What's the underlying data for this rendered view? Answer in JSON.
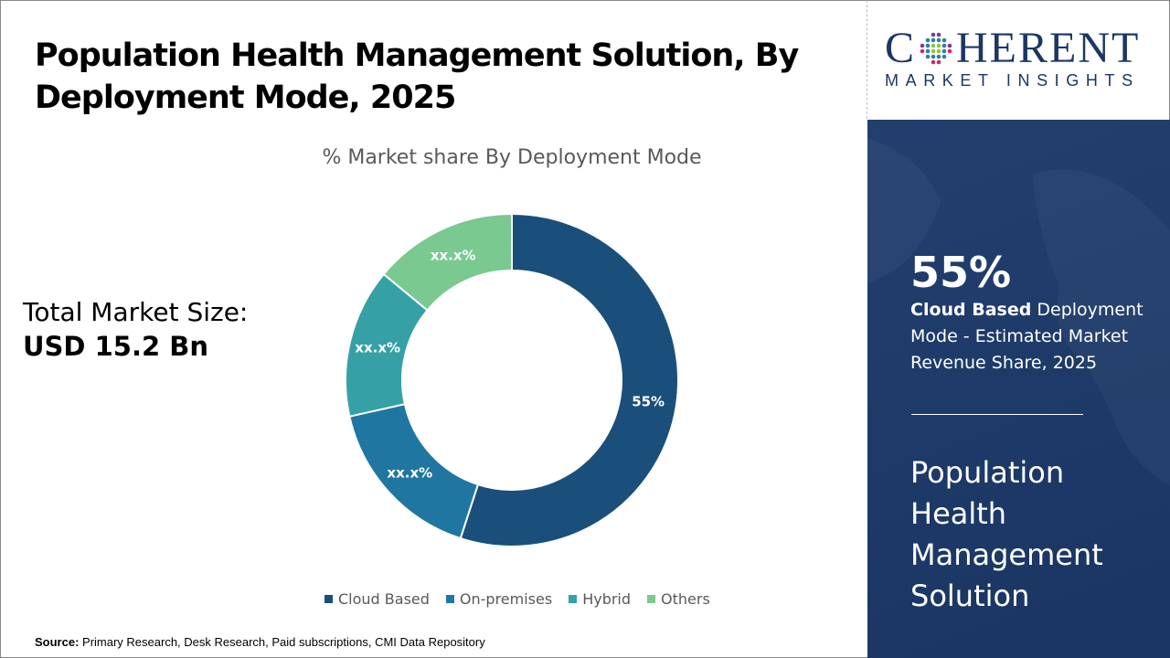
{
  "title": "Population Health Management Solution, By Deployment Mode, 2025",
  "market_size": {
    "label": "Total Market Size:",
    "value": "USD 15.2 Bn"
  },
  "chart_data": {
    "type": "pie",
    "donut": true,
    "title": "% Market share By Deployment Mode",
    "categories": [
      "Cloud Based",
      "On-premises",
      "Hybrid",
      "Others"
    ],
    "values": [
      55,
      16.5,
      14.5,
      14
    ],
    "data_labels": [
      "55%",
      "xx.x%",
      "xx.x%",
      "xx.x%"
    ],
    "colors": [
      "#1b4f7b",
      "#1f77a1",
      "#35a1a6",
      "#79c990"
    ],
    "legend_position": "bottom"
  },
  "source": {
    "label": "Source:",
    "text": " Primary Research, Desk Research, Paid subscriptions, CMI Data Repository"
  },
  "logo": {
    "top": "COHERENT",
    "bottom": "MARKET INSIGHTS"
  },
  "panel": {
    "big": "55%",
    "desc_bold": "Cloud Based",
    "desc_rest": " Deployment Mode - Estimated Market Revenue Share, 2025",
    "name": "Population Health Management Solution"
  }
}
